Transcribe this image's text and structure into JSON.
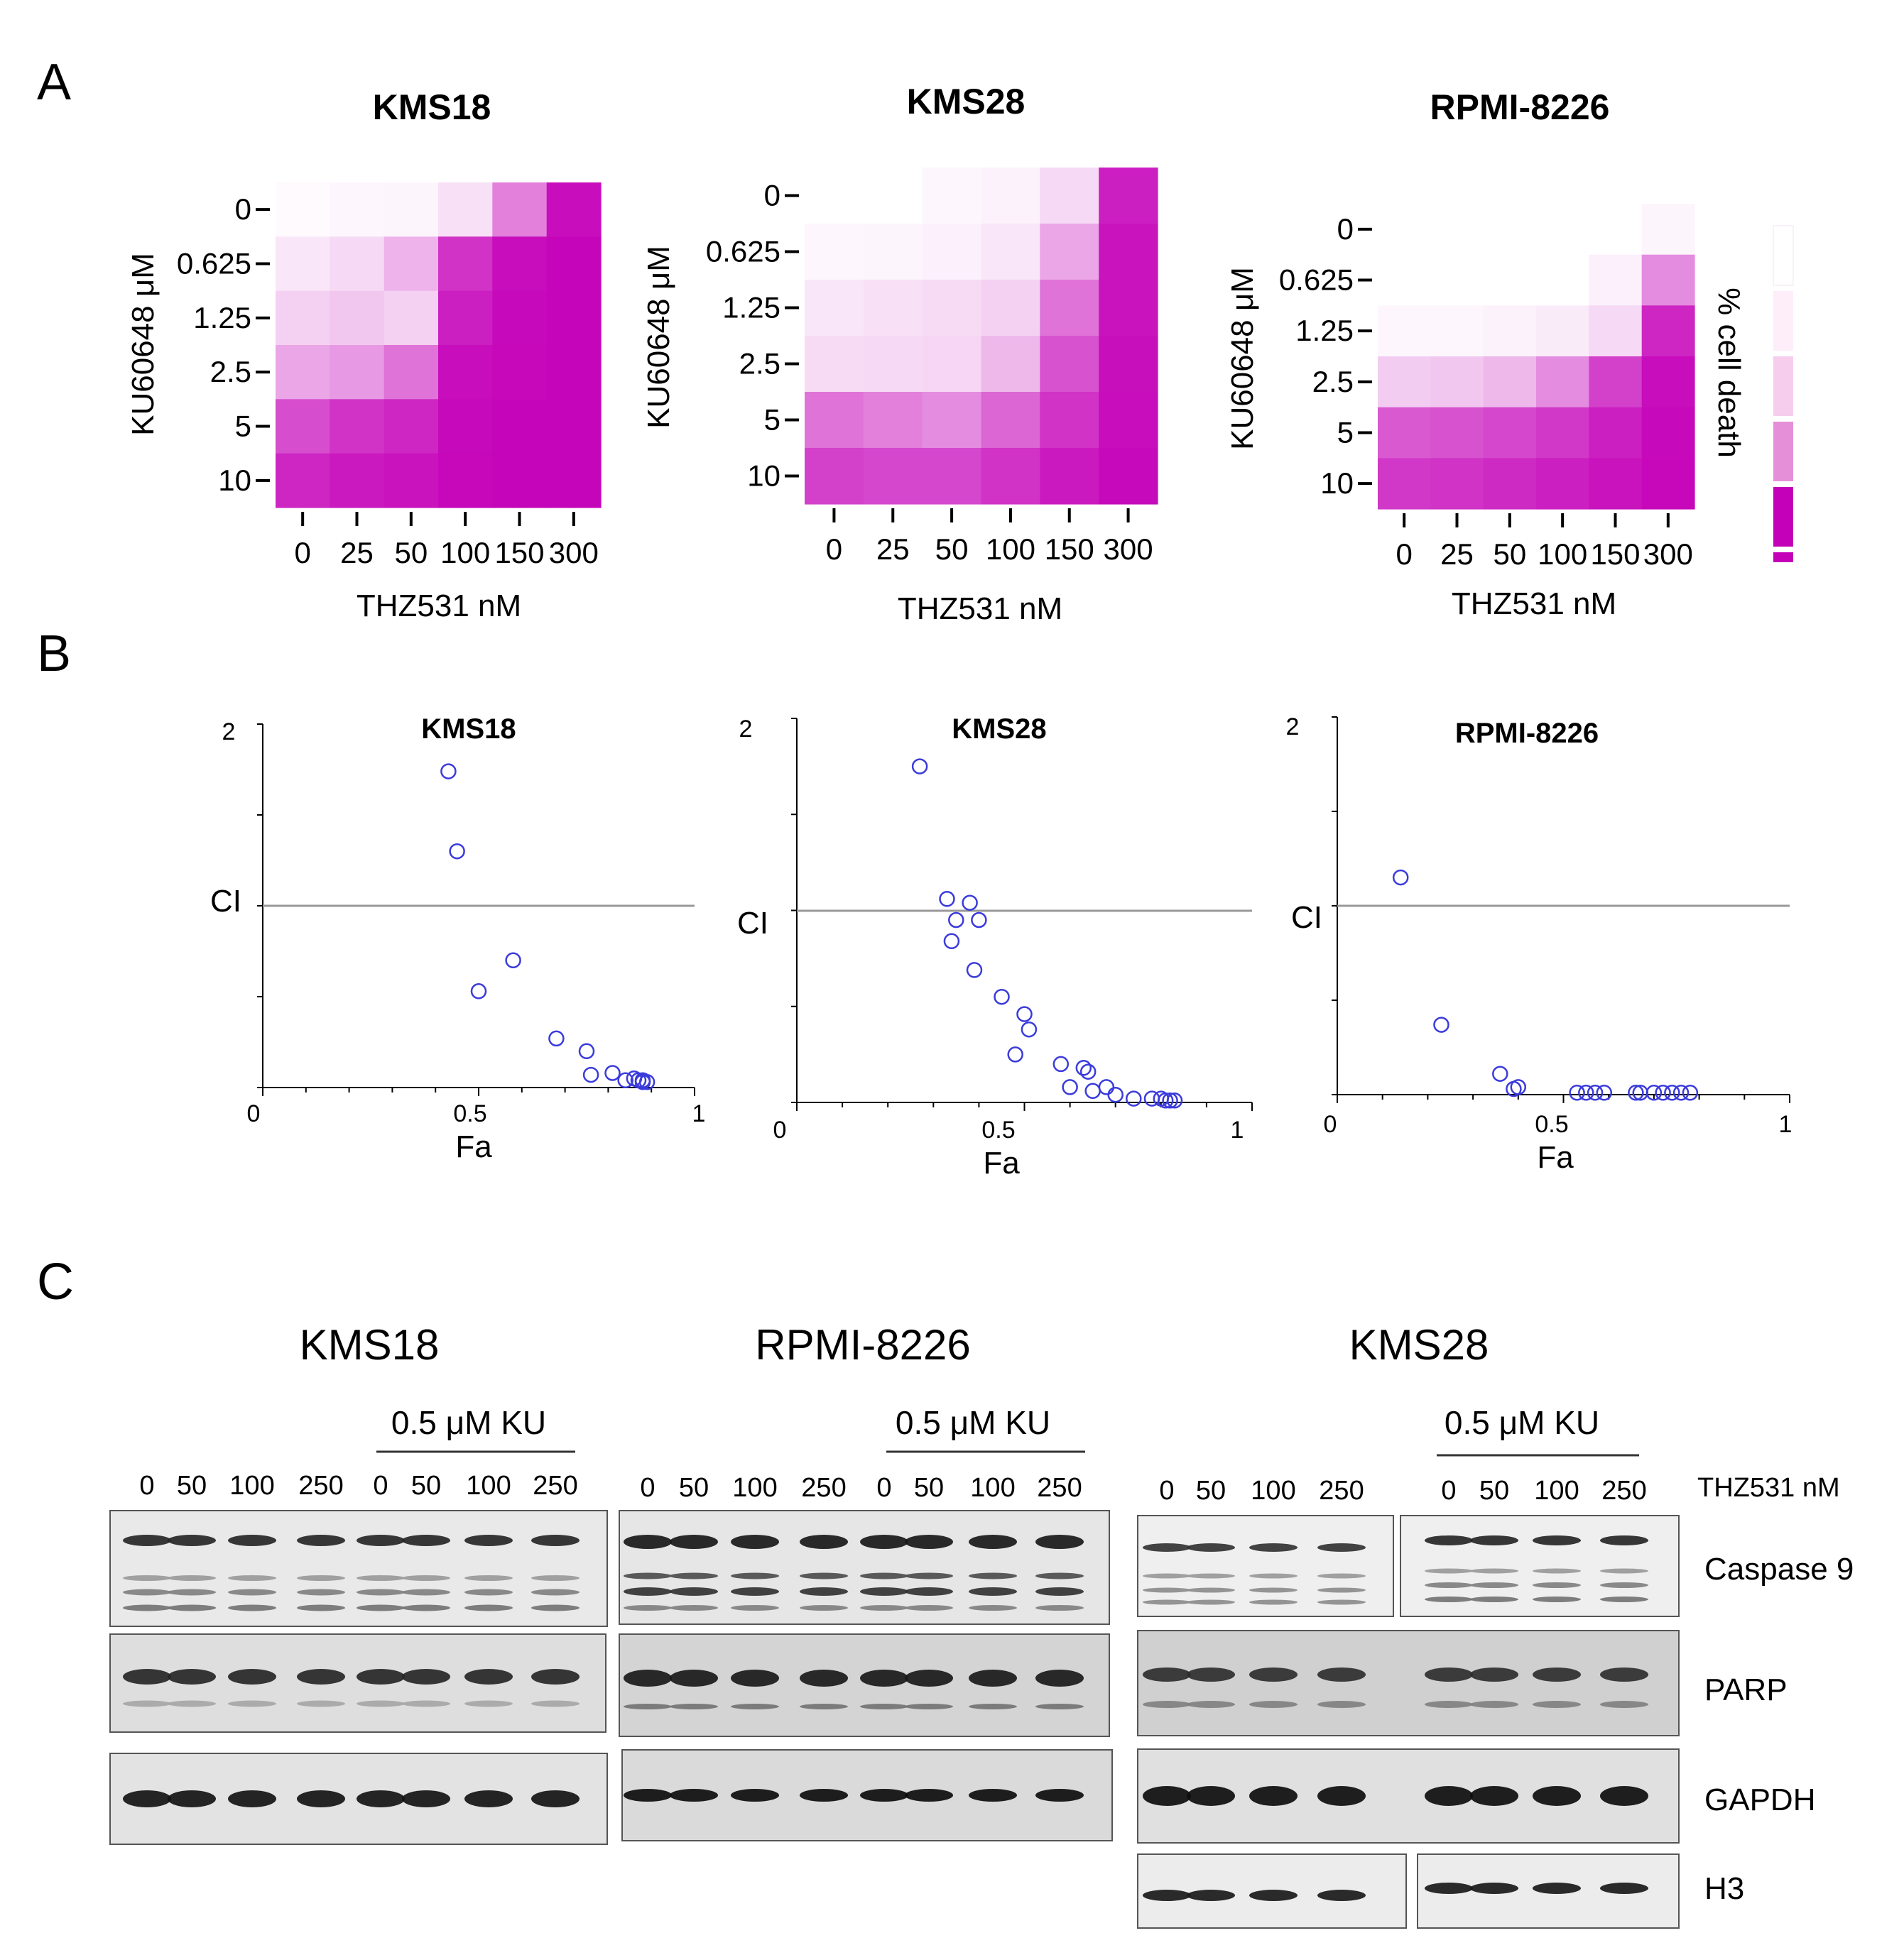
{
  "panels": {
    "a": "A",
    "b": "B",
    "c": "C"
  },
  "legend": {
    "label": "% cell death",
    "colors": [
      "#ffffff",
      "#fdeefa",
      "#f7cdee",
      "#e58fd8",
      "#c400b8",
      "#c400b8"
    ]
  },
  "chart_data": [
    {
      "type": "heatmap",
      "title": "KMS18",
      "xlabel": "THZ531 nM",
      "ylabel": "KU60648 μM",
      "x": [
        "0",
        "25",
        "50",
        "100",
        "150",
        "300"
      ],
      "y": [
        "0",
        "0.625",
        "1.25",
        "2.5",
        "5",
        "10"
      ],
      "values": [
        [
          2,
          3,
          4,
          12,
          50,
          95
        ],
        [
          10,
          15,
          30,
          80,
          95,
          98
        ],
        [
          18,
          22,
          18,
          88,
          96,
          98
        ],
        [
          35,
          40,
          55,
          95,
          97,
          98
        ],
        [
          70,
          80,
          85,
          96,
          98,
          98
        ],
        [
          85,
          90,
          92,
          97,
          98,
          98
        ]
      ]
    },
    {
      "type": "heatmap",
      "title": "KMS28",
      "xlabel": "THZ531 nM",
      "ylabel": "KU60648 μM",
      "x": [
        "0",
        "25",
        "50",
        "100",
        "150",
        "300"
      ],
      "y": [
        "0",
        "0.625",
        "1.25",
        "2.5",
        "5",
        "10"
      ],
      "values": [
        [
          0,
          0,
          3,
          5,
          15,
          88
        ],
        [
          3,
          4,
          6,
          10,
          35,
          92
        ],
        [
          10,
          12,
          14,
          18,
          55,
          92
        ],
        [
          14,
          15,
          16,
          28,
          68,
          94
        ],
        [
          55,
          50,
          45,
          60,
          80,
          95
        ],
        [
          75,
          72,
          72,
          80,
          90,
          96
        ]
      ]
    },
    {
      "type": "heatmap",
      "title": "RPMI-8226",
      "xlabel": "THZ531 nM",
      "ylabel": "KU60648 μM",
      "x": [
        "0",
        "25",
        "50",
        "100",
        "150",
        "300"
      ],
      "y": [
        "0",
        "0.625",
        "1.25",
        "2.5",
        "5",
        "10"
      ],
      "values": [
        [
          0,
          0,
          0,
          0,
          0,
          4
        ],
        [
          0,
          0,
          0,
          0,
          6,
          45
        ],
        [
          3,
          3,
          5,
          8,
          15,
          85
        ],
        [
          20,
          22,
          28,
          45,
          75,
          95
        ],
        [
          65,
          68,
          72,
          78,
          88,
          96
        ],
        [
          78,
          80,
          84,
          88,
          92,
          97
        ]
      ]
    },
    {
      "type": "scatter",
      "title": "KMS18",
      "xlabel": "Fa",
      "ylabel": "CI",
      "xticks": [
        "0",
        "0.5",
        "1"
      ],
      "ylim_max_label": "2",
      "xlim": [
        0,
        1
      ],
      "ylim": [
        0,
        2
      ],
      "x": [
        0.43,
        0.45,
        0.58,
        0.5,
        0.68,
        0.75,
        0.76,
        0.81,
        0.84,
        0.86,
        0.87,
        0.88,
        0.88,
        0.89
      ],
      "y": [
        1.74,
        1.3,
        0.7,
        0.53,
        0.27,
        0.2,
        0.07,
        0.08,
        0.04,
        0.05,
        0.04,
        0.03,
        0.04,
        0.03
      ]
    },
    {
      "type": "scatter",
      "title": "KMS28",
      "xlabel": "Fa",
      "ylabel": "CI",
      "xticks": [
        "0",
        "0.5",
        "1"
      ],
      "ylim_max_label": "2",
      "xlim": [
        0,
        1
      ],
      "ylim": [
        0,
        2
      ],
      "x": [
        0.27,
        0.33,
        0.38,
        0.35,
        0.4,
        0.34,
        0.39,
        0.45,
        0.5,
        0.51,
        0.48,
        0.58,
        0.63,
        0.64,
        0.6,
        0.65,
        0.68,
        0.7,
        0.74,
        0.78,
        0.8,
        0.81,
        0.82,
        0.83
      ],
      "y": [
        1.75,
        1.06,
        1.04,
        0.95,
        0.95,
        0.84,
        0.69,
        0.55,
        0.46,
        0.38,
        0.25,
        0.2,
        0.18,
        0.16,
        0.08,
        0.06,
        0.08,
        0.04,
        0.02,
        0.02,
        0.02,
        0.01,
        0.01,
        0.01
      ]
    },
    {
      "type": "scatter",
      "title": "RPMI-8226",
      "xlabel": "Fa",
      "ylabel": "CI",
      "xticks": [
        "0",
        "0.5",
        "1"
      ],
      "ylim_max_label": "2",
      "xlim": [
        0,
        1
      ],
      "ylim": [
        0,
        2
      ],
      "x": [
        0.14,
        0.23,
        0.36,
        0.39,
        0.4,
        0.53,
        0.55,
        0.57,
        0.59,
        0.66,
        0.67,
        0.7,
        0.72,
        0.74,
        0.76,
        0.78
      ],
      "y": [
        1.15,
        0.37,
        0.11,
        0.03,
        0.04,
        0.01,
        0.01,
        0.01,
        0.01,
        0.01,
        0.01,
        0.01,
        0.01,
        0.01,
        0.01,
        0.01
      ]
    }
  ],
  "blots": {
    "titles": [
      "KMS18",
      "RPMI-8226",
      "KMS28"
    ],
    "ku_label": "0.5 μM KU",
    "thz_label": "THZ531 nM",
    "lanes": [
      "0",
      "50",
      "100",
      "250",
      "0",
      "50",
      "100",
      "250"
    ],
    "proteins": [
      "Caspase 9",
      "PARP",
      "GAPDH",
      "H3"
    ]
  }
}
